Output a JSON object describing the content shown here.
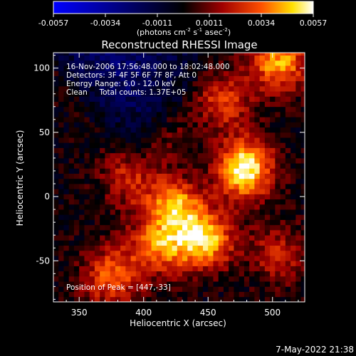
{
  "colorbar": {
    "ticks": [
      "-0.0057",
      "-0.0034",
      "-0.0011",
      "0.0011",
      "0.0034",
      "0.0057"
    ],
    "units_main": "(photons cm",
    "units_sup1": "-2",
    "units_mid1": " s",
    "units_sup2": "-1",
    "units_mid2": " asec",
    "units_sup3": "-2",
    "units_end": ")"
  },
  "chart_data": {
    "type": "heatmap",
    "title": "Reconstructed RHESSI Image",
    "xlabel": "Heliocentric X (arcsec)",
    "ylabel": "Heliocentric Y (arcsec)",
    "xlim": [
      330,
      525
    ],
    "ylim": [
      -82,
      112
    ],
    "x_ticks": [
      350,
      400,
      450,
      500
    ],
    "y_ticks": [
      100,
      50,
      0,
      -50
    ],
    "value_range": [
      -0.0057,
      0.0057
    ],
    "colormap": "blue-black-red-yellow-white",
    "peak": [
      447,
      -33
    ],
    "sources": [
      {
        "x": 478,
        "y": 22,
        "amplitude": 0.0057
      },
      {
        "x": 447,
        "y": -33,
        "amplitude": 0.0052
      },
      {
        "x": 425,
        "y": -5,
        "amplitude": 0.0044
      },
      {
        "x": 412,
        "y": -38,
        "amplitude": 0.0036
      },
      {
        "x": 505,
        "y": 105,
        "amplitude": 0.0042
      },
      {
        "x": 460,
        "y": 75,
        "amplitude": 0.003
      },
      {
        "x": 375,
        "y": -62,
        "amplitude": 0.0034
      },
      {
        "x": 390,
        "y": 15,
        "amplitude": 0.0024
      },
      {
        "x": 505,
        "y": -45,
        "amplitude": 0.0022
      },
      {
        "x": 420,
        "y": 45,
        "amplitude": 0.002
      }
    ],
    "annotations": [
      "16-Nov-2006 17:56:48.000 to 18:02:48.000",
      "Detectors: 3F 4F 5F 6F 7F 8F, Att 0",
      "Energy Range: 6.0 - 12.0 keV",
      "Clean     Total counts: 1.37E+05"
    ],
    "peak_label": "Position of Peak = [447,-33]"
  },
  "timestamp": "7-May-2022 21:38"
}
